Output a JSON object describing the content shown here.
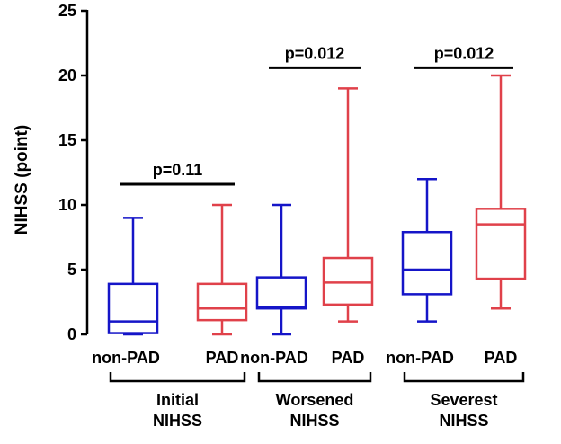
{
  "chart_data": {
    "type": "boxplot",
    "ylabel": "NIHSS (point)",
    "ylim": [
      0,
      25
    ],
    "yticks": [
      0,
      5,
      10,
      15,
      20,
      25
    ],
    "categories": [
      "non-PAD",
      "PAD",
      "non-PAD",
      "PAD",
      "non-PAD",
      "PAD"
    ],
    "colors": {
      "non-PAD": "#1515c8",
      "PAD": "#e0414a"
    },
    "groups": [
      {
        "label_line1": "Initial",
        "label_line2": "NIHSS",
        "p_value": "p=0.11",
        "boxes": [
          {
            "name": "non-PAD",
            "min": 0,
            "q1": 0.1,
            "median": 1,
            "q3": 3.9,
            "max": 9
          },
          {
            "name": "PAD",
            "min": 0,
            "q1": 1.1,
            "median": 2,
            "q3": 3.9,
            "max": 10
          }
        ]
      },
      {
        "label_line1": "Worsened",
        "label_line2": "NIHSS",
        "p_value": "p=0.012",
        "boxes": [
          {
            "name": "non-PAD",
            "min": 0,
            "q1": 2,
            "median": 2.1,
            "q3": 4.4,
            "max": 10
          },
          {
            "name": "PAD",
            "min": 1,
            "q1": 2.3,
            "median": 4,
            "q3": 5.9,
            "max": 19
          }
        ]
      },
      {
        "label_line1": "Severest",
        "label_line2": "NIHSS",
        "p_value": "p=0.012",
        "boxes": [
          {
            "name": "non-PAD",
            "min": 1,
            "q1": 3.1,
            "median": 5,
            "q3": 7.9,
            "max": 12
          },
          {
            "name": "PAD",
            "min": 2,
            "q1": 4.3,
            "median": 8.5,
            "q3": 9.7,
            "max": 20
          }
        ]
      }
    ]
  }
}
